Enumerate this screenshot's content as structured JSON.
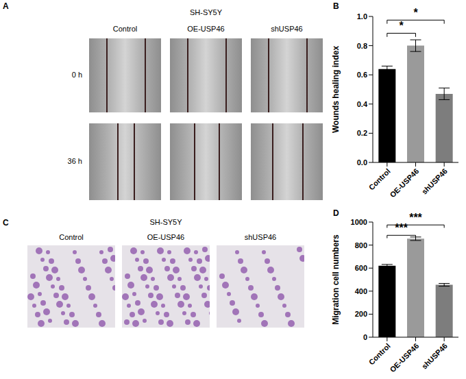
{
  "panels": {
    "A": {
      "letter": "A",
      "title": "SH-SY5Y",
      "columns": [
        "Control",
        "OE-USP46",
        "shUSP46"
      ],
      "rows": [
        "0 h",
        "36 h"
      ]
    },
    "C": {
      "letter": "C",
      "title": "SH-SY5Y",
      "columns": [
        "Control",
        "OE-USP46",
        "shUSP46"
      ]
    }
  },
  "chart_data": [
    {
      "panel": "B",
      "type": "bar",
      "ylabel": "Wounds healing index",
      "categories": [
        "Control",
        "OE-USP46",
        "shUSP46"
      ],
      "values": [
        0.64,
        0.8,
        0.47
      ],
      "errors": [
        0.02,
        0.04,
        0.04
      ],
      "colors": [
        "#000000",
        "#9a9a9a",
        "#7d7d7d"
      ],
      "ylim": [
        0,
        1.0
      ],
      "yticks": [
        {
          "value": 0,
          "label": "0.0"
        },
        {
          "value": 0.2,
          "label": "0.2"
        },
        {
          "value": 0.4,
          "label": "0.4"
        },
        {
          "value": 0.6,
          "label": "0.6"
        },
        {
          "value": 0.8,
          "label": "0.8"
        },
        {
          "value": 1.0,
          "label": "1.0"
        }
      ],
      "significance": [
        {
          "from": "Control",
          "to": "OE-USP46",
          "label": "*"
        },
        {
          "from": "Control",
          "to": "shUSP46",
          "label": "*"
        }
      ]
    },
    {
      "panel": "D",
      "type": "bar",
      "ylabel": "Migration cell numbers",
      "categories": [
        "Control",
        "OE-USP46",
        "shUSP46"
      ],
      "values": [
        620,
        855,
        455
      ],
      "errors": [
        12,
        15,
        12
      ],
      "colors": [
        "#000000",
        "#9a9a9a",
        "#7d7d7d"
      ],
      "ylim": [
        0,
        1000
      ],
      "yticks": [
        0,
        200,
        400,
        600,
        800,
        1000
      ],
      "significance": [
        {
          "from": "Control",
          "to": "OE-USP46",
          "label": "***"
        },
        {
          "from": "Control",
          "to": "shUSP46",
          "label": "***"
        }
      ]
    }
  ]
}
